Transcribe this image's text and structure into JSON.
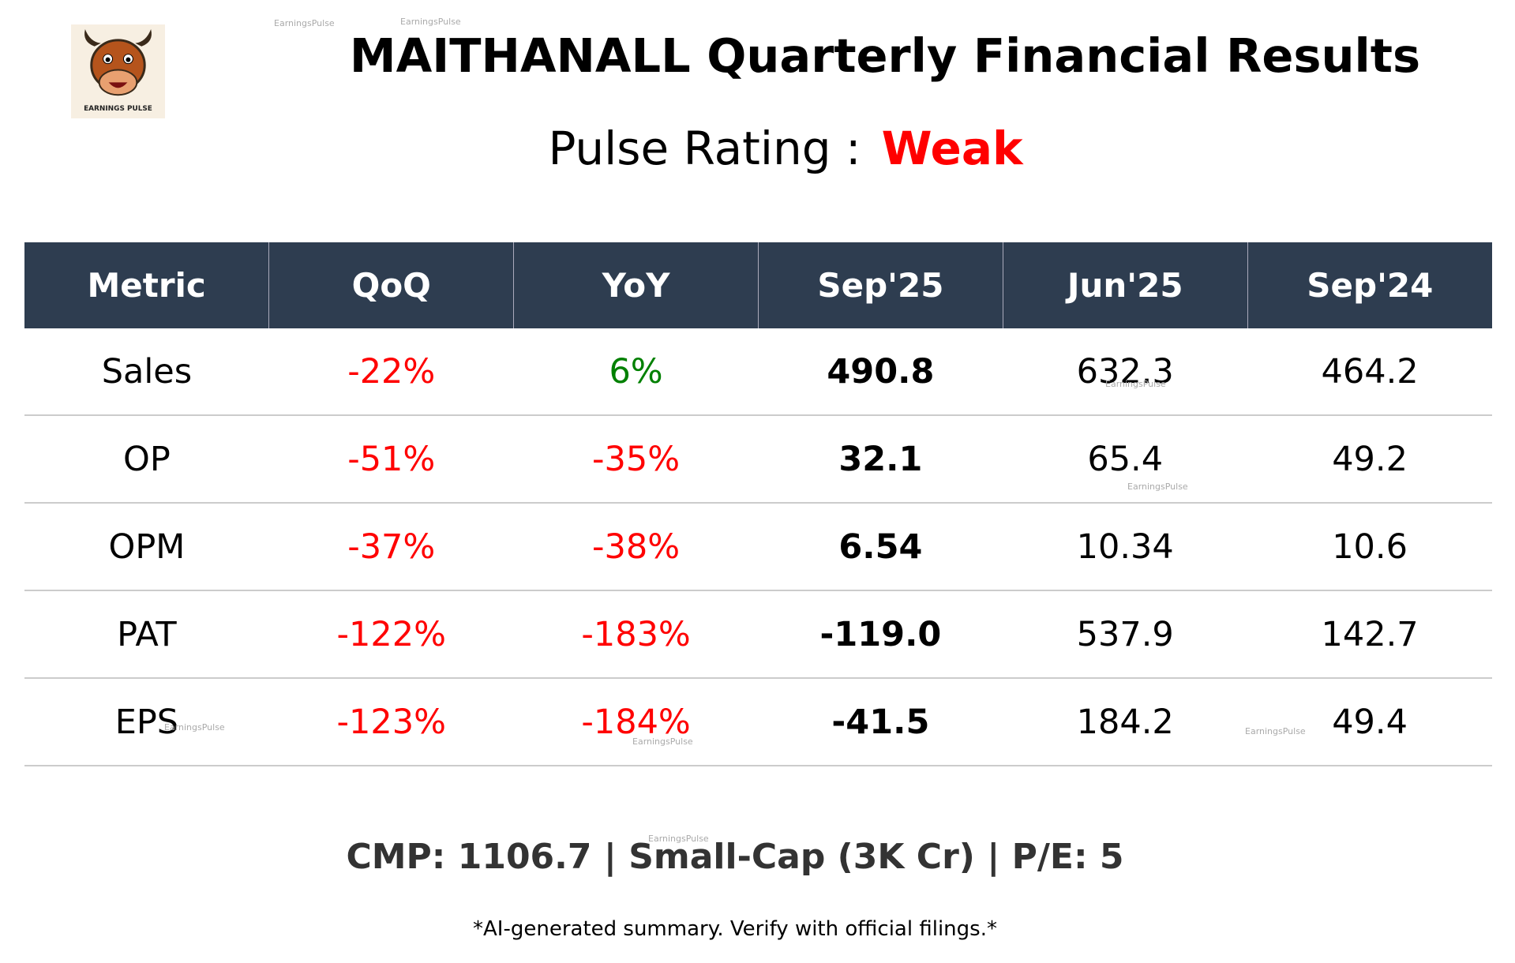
{
  "header": {
    "title": "MAITHANALL Quarterly Financial Results",
    "rating_label": "Pulse Rating :",
    "rating": "Weak",
    "rating_color": "#ff0000"
  },
  "logo": {
    "caption": "EARNINGS PULSE"
  },
  "watermark": "EarningsPulse",
  "table": {
    "columns": [
      "Metric",
      "QoQ",
      "YoY",
      "Sep'25",
      "Jun'25",
      "Sep'24"
    ],
    "rows": [
      [
        "Sales",
        "-22%",
        "6%",
        "490.8",
        "632.3",
        "464.2"
      ],
      [
        "OP",
        "-51%",
        "-35%",
        "32.1",
        "65.4",
        "49.2"
      ],
      [
        "OPM",
        "-37%",
        "-38%",
        "6.54",
        "10.34",
        "10.6"
      ],
      [
        "PAT",
        "-122%",
        "-183%",
        "-119.0",
        "537.9",
        "142.7"
      ],
      [
        "EPS",
        "-123%",
        "-184%",
        "-41.5",
        "184.2",
        "49.4"
      ]
    ],
    "negative_color": "#ff0000",
    "positive_color": "#008000"
  },
  "footer": {
    "summary": "CMP: 1106.7 | Small-Cap (3K Cr) | P/E: 5",
    "disclaimer": "*AI-generated summary. Verify with official filings.*"
  }
}
